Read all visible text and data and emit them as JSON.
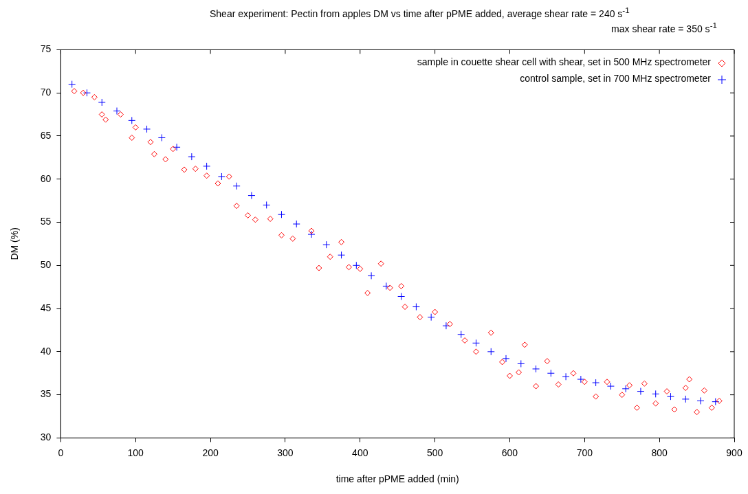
{
  "chart_data": {
    "type": "scatter",
    "title": "Shear experiment: Pectin from apples DM vs time after pPME added, average shear rate = 240 s$^{-1}$",
    "subtitle": "max shear rate = 350 s$^{-1}$",
    "xlabel": "time after pPME added (min)",
    "ylabel": "DM (%)",
    "xlim": [
      0,
      900
    ],
    "xticks": [
      0,
      100,
      200,
      300,
      400,
      500,
      600,
      700,
      800,
      900
    ],
    "ylim": [
      30,
      75
    ],
    "yticks": [
      30,
      35,
      40,
      45,
      50,
      55,
      60,
      65,
      70,
      75
    ],
    "grid": false,
    "legend": "top right",
    "series": [
      {
        "name": "sample in couette shear cell with shear, set in 500 MHz spectrometer",
        "color": "#ff0000",
        "marker": "diamond",
        "x": [
          18,
          30,
          45,
          55,
          60,
          80,
          95,
          100,
          120,
          125,
          140,
          150,
          165,
          180,
          195,
          210,
          225,
          235,
          250,
          260,
          280,
          295,
          310,
          335,
          345,
          360,
          375,
          385,
          400,
          410,
          428,
          440,
          455,
          460,
          480,
          500,
          520,
          540,
          555,
          575,
          590,
          600,
          612,
          620,
          635,
          650,
          665,
          685,
          700,
          715,
          730,
          750,
          760,
          770,
          780,
          795,
          810,
          820,
          835,
          840,
          850,
          860,
          870,
          880
        ],
        "values": [
          70.2,
          70.0,
          69.5,
          67.5,
          66.9,
          67.5,
          64.8,
          66,
          64.3,
          62.9,
          62.3,
          63.5,
          61.1,
          61.2,
          60.4,
          59.5,
          60.3,
          56.9,
          55.8,
          55.3,
          55.4,
          53.5,
          53.1,
          54.0,
          49.7,
          51.0,
          52.7,
          49.8,
          49.6,
          46.8,
          50.2,
          47.4,
          47.6,
          45.2,
          44.0,
          44.6,
          43.2,
          41.3,
          40.0,
          42.2,
          38.8,
          37.2,
          37.6,
          40.8,
          36.0,
          38.9,
          36.2,
          37.5,
          36.5,
          34.8,
          36.5,
          35.0,
          36.1,
          33.5,
          36.3,
          34.0,
          35.4,
          33.3,
          35.8,
          36.8,
          33.0,
          35.5,
          33.5,
          34.3
        ]
      },
      {
        "name": "control sample, set in 700 MHz spectrometer",
        "color": "#0000ff",
        "marker": "cross",
        "x": [
          15,
          35,
          55,
          75,
          95,
          115,
          135,
          155,
          175,
          195,
          215,
          235,
          255,
          275,
          295,
          315,
          335,
          355,
          375,
          395,
          415,
          435,
          455,
          475,
          495,
          515,
          535,
          555,
          575,
          595,
          615,
          635,
          655,
          675,
          695,
          715,
          735,
          755,
          775,
          795,
          815,
          835,
          855,
          875
        ],
        "values": [
          71.0,
          70.0,
          68.9,
          67.9,
          66.8,
          65.8,
          64.8,
          63.7,
          62.6,
          61.5,
          60.3,
          59.2,
          58.1,
          57.0,
          55.9,
          54.8,
          53.6,
          52.4,
          51.2,
          50.0,
          48.8,
          47.6,
          46.4,
          45.2,
          44.0,
          43.0,
          42.0,
          41.0,
          40.0,
          39.2,
          38.6,
          38.0,
          37.5,
          37.1,
          36.8,
          36.4,
          36.0,
          35.7,
          35.4,
          35.1,
          34.8,
          34.5,
          34.3,
          34.2
        ]
      }
    ]
  }
}
